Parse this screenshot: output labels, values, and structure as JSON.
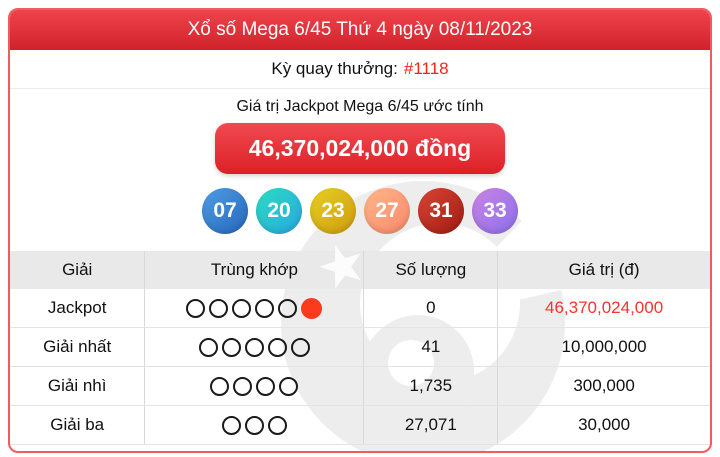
{
  "header": {
    "title": "Xổ số Mega 6/45 Thứ 4 ngày 08/11/2023"
  },
  "draw": {
    "label": "Kỳ quay thưởng:",
    "number": "#1118",
    "number_color": "#fa2318"
  },
  "jackpot": {
    "caption": "Giá trị Jackpot Mega 6/45 ước tính",
    "amount": "46,370,024,000 đồng"
  },
  "balls": [
    {
      "number": "07",
      "color_top": "#4f9de4",
      "color_bottom": "#2767bd"
    },
    {
      "number": "20",
      "color_top": "#2cdcc2",
      "color_bottom": "#28a7df"
    },
    {
      "number": "23",
      "color_top": "#e6cf22",
      "color_bottom": "#cf9c10"
    },
    {
      "number": "27",
      "color_top": "#ffb787",
      "color_bottom": "#f8886d"
    },
    {
      "number": "31",
      "color_top": "#d84536",
      "color_bottom": "#a01c11"
    },
    {
      "number": "33",
      "color_top": "#ca82e4",
      "color_bottom": "#8c71ea"
    }
  ],
  "table": {
    "headers": [
      "Giải",
      "Trùng khớp",
      "Số lượng",
      "Giá trị (đ)"
    ],
    "rows": [
      {
        "prize": "Jackpot",
        "match_open": 5,
        "match_filled": 1,
        "count": "0",
        "value": "46,370,024,000",
        "value_color": "#f4352b"
      },
      {
        "prize": "Giải nhất",
        "match_open": 5,
        "match_filled": 0,
        "count": "41",
        "value": "10,000,000"
      },
      {
        "prize": "Giải nhì",
        "match_open": 4,
        "match_filled": 0,
        "count": "1,735",
        "value": "300,000"
      },
      {
        "prize": "Giải ba",
        "match_open": 3,
        "match_filled": 0,
        "count": "27,071",
        "value": "30,000"
      }
    ]
  },
  "colors": {
    "header_red": "#d0222a",
    "card_border": "#f15b60",
    "value_red": "#f4352b",
    "filled_circle": "#fb3a1e"
  }
}
